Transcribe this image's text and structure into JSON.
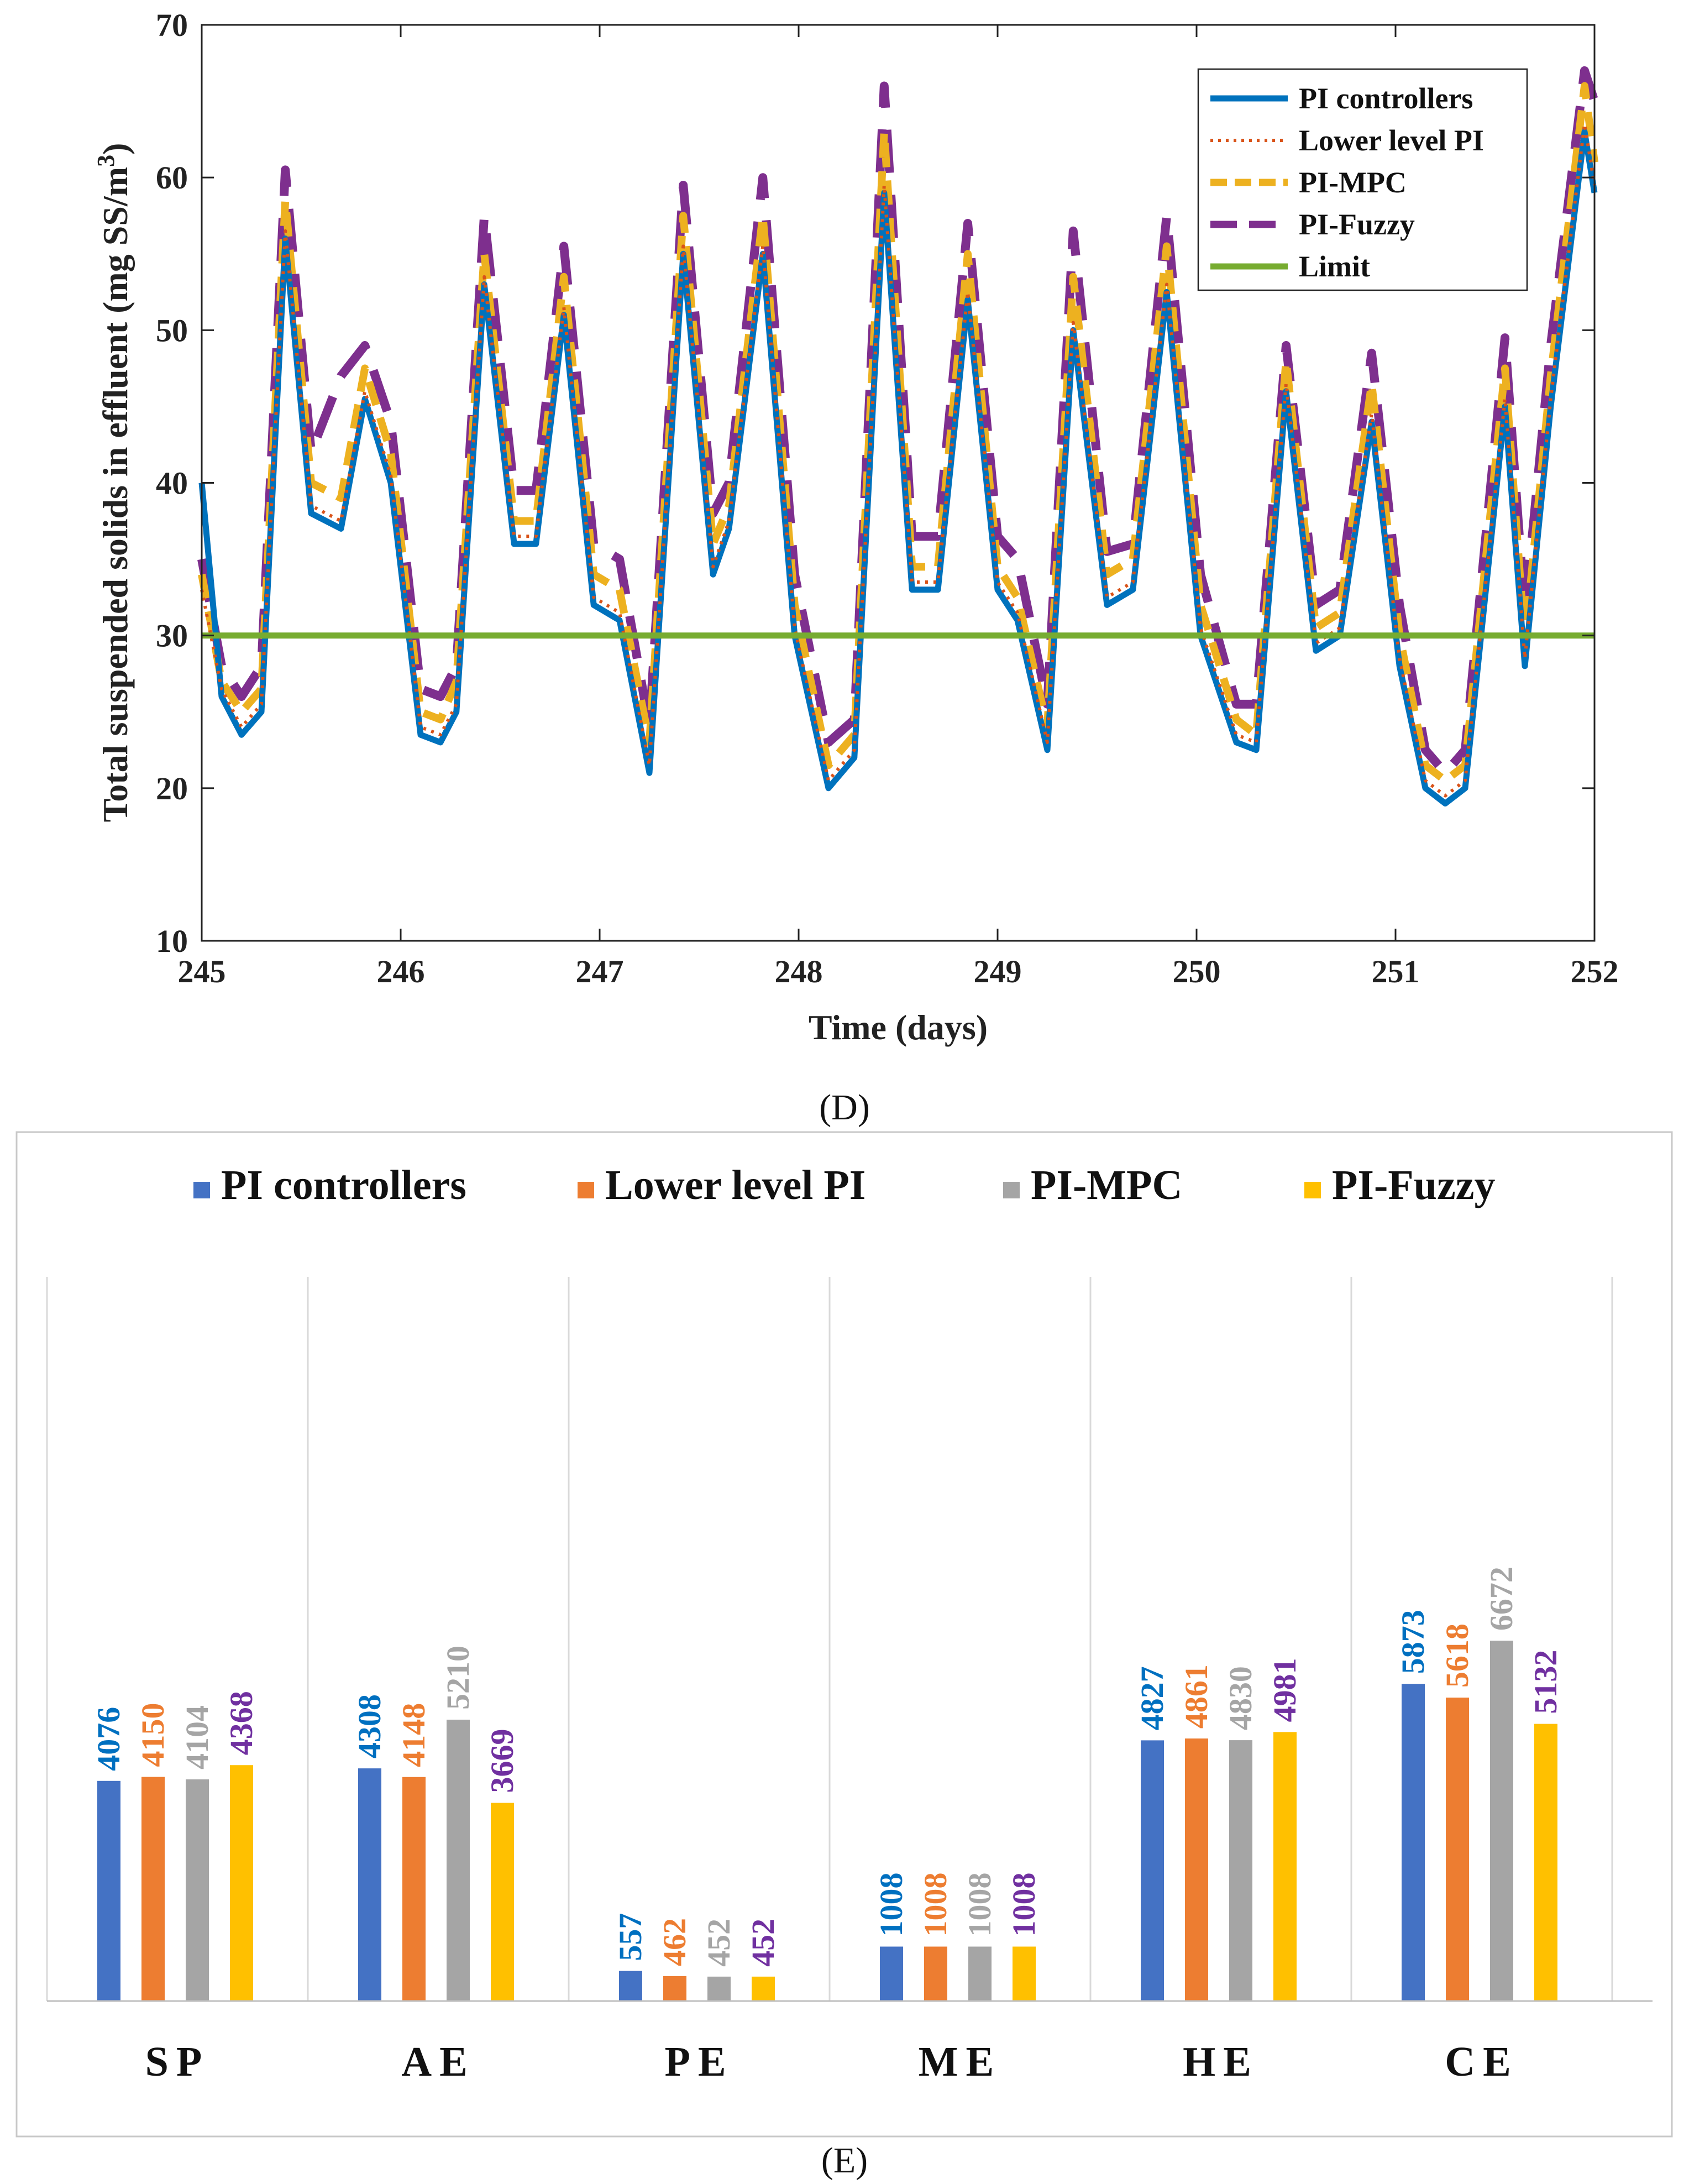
{
  "chart_data": [
    {
      "panel_label": "(D)",
      "type": "line",
      "title": "",
      "xlabel": "Time (days)",
      "ylabel": "Total suspended solids in effluent (mg SS/m³)",
      "ylabel_main": "Total suspended solids in effluent (mg SS/m",
      "ylabel_sup": "3",
      "ylabel_end": ")",
      "xlim": [
        245,
        252
      ],
      "ylim": [
        10,
        70
      ],
      "xticks": [
        245,
        246,
        247,
        248,
        249,
        250,
        251,
        252
      ],
      "yticks": [
        10,
        20,
        30,
        40,
        50,
        60,
        70
      ],
      "grid": false,
      "legend_position": "top-right",
      "limit": 30,
      "series": [
        {
          "name": "PI controllers",
          "color": "#0072BD",
          "style": "solid",
          "x": [
            245.0,
            245.1,
            245.2,
            245.3,
            245.42,
            245.55,
            245.7,
            245.82,
            245.95,
            246.1,
            246.2,
            246.28,
            246.42,
            246.57,
            246.68,
            246.82,
            246.97,
            247.1,
            247.25,
            247.42,
            247.57,
            247.65,
            247.82,
            247.98,
            248.15,
            248.28,
            248.43,
            248.57,
            248.7,
            248.85,
            249.0,
            249.1,
            249.25,
            249.38,
            249.55,
            249.68,
            249.85,
            250.02,
            250.2,
            250.3,
            250.45,
            250.6,
            250.72,
            250.88,
            251.02,
            251.15,
            251.25,
            251.35,
            251.55,
            251.65,
            251.78,
            251.95,
            252.0
          ],
          "y": [
            40,
            26,
            23.5,
            25,
            56,
            38,
            37,
            45.5,
            40,
            23.5,
            23,
            25,
            53,
            36,
            36,
            51,
            32,
            31,
            21,
            55,
            34,
            37,
            55,
            30,
            20,
            22,
            59,
            33,
            33,
            52,
            33,
            31,
            22.5,
            50,
            32,
            33,
            52.5,
            30,
            23,
            22.5,
            46,
            29,
            30,
            44,
            28,
            20,
            19,
            20,
            45,
            28,
            45,
            63,
            59
          ]
        },
        {
          "name": "Lower level PI",
          "color": "#D95319",
          "style": "dotted",
          "x": [
            245.0,
            245.1,
            245.2,
            245.3,
            245.42,
            245.55,
            245.7,
            245.82,
            245.95,
            246.1,
            246.2,
            246.28,
            246.42,
            246.57,
            246.68,
            246.82,
            246.97,
            247.1,
            247.25,
            247.42,
            247.57,
            247.65,
            247.82,
            247.98,
            248.15,
            248.28,
            248.43,
            248.57,
            248.7,
            248.85,
            249.0,
            249.1,
            249.25,
            249.38,
            249.55,
            249.68,
            249.85,
            250.02,
            250.2,
            250.3,
            250.45,
            250.6,
            250.72,
            250.88,
            251.02,
            251.15,
            251.25,
            251.35,
            251.55,
            251.65,
            251.78,
            251.95,
            252.0
          ],
          "y": [
            33,
            26.5,
            24,
            25.5,
            56.5,
            38.5,
            37.5,
            46,
            40.5,
            24,
            23.5,
            25.5,
            53.5,
            36.5,
            36.5,
            51.5,
            32.5,
            31.5,
            21.5,
            55.5,
            34.5,
            37.5,
            55.5,
            30.5,
            20.5,
            22.5,
            59.5,
            33.5,
            33.5,
            52.5,
            33.5,
            31.5,
            23,
            50.5,
            32.5,
            33.5,
            53,
            30.5,
            23.5,
            23,
            46.5,
            29.5,
            30.5,
            44.5,
            28.5,
            20.5,
            19.5,
            20.5,
            45.5,
            28.5,
            45.5,
            63.5,
            59.5
          ]
        },
        {
          "name": "PI-MPC",
          "color": "#EDB120",
          "style": "dashed",
          "x": [
            245.0,
            245.1,
            245.2,
            245.3,
            245.42,
            245.55,
            245.7,
            245.82,
            245.95,
            246.1,
            246.2,
            246.28,
            246.42,
            246.57,
            246.68,
            246.82,
            246.97,
            247.1,
            247.25,
            247.42,
            247.57,
            247.65,
            247.82,
            247.98,
            248.15,
            248.28,
            248.43,
            248.57,
            248.7,
            248.85,
            249.0,
            249.1,
            249.25,
            249.38,
            249.55,
            249.68,
            249.85,
            250.02,
            250.2,
            250.3,
            250.45,
            250.6,
            250.72,
            250.88,
            251.02,
            251.15,
            251.25,
            251.35,
            251.55,
            251.65,
            251.78,
            251.95,
            252.0
          ],
          "y": [
            34,
            27,
            25,
            26.5,
            58.5,
            40,
            39,
            47.5,
            42,
            25,
            24.5,
            27,
            55,
            37.5,
            37.5,
            53.5,
            34,
            33,
            23,
            57.5,
            36,
            38.5,
            57.5,
            32,
            21.5,
            23.5,
            63,
            34.5,
            34.5,
            55,
            34.5,
            32.5,
            24,
            53.5,
            34,
            35,
            55.5,
            32,
            24.5,
            23.5,
            48,
            30.5,
            31.5,
            46.5,
            30,
            21.5,
            20.5,
            21.5,
            47.5,
            29.5,
            47,
            66,
            61
          ]
        },
        {
          "name": "PI-Fuzzy",
          "color": "#7E2F8E",
          "style": "longdash",
          "x": [
            245.0,
            245.1,
            245.2,
            245.3,
            245.42,
            245.55,
            245.7,
            245.82,
            245.95,
            246.1,
            246.2,
            246.28,
            246.42,
            246.57,
            246.68,
            246.82,
            246.97,
            247.1,
            247.25,
            247.42,
            247.57,
            247.65,
            247.82,
            247.98,
            248.15,
            248.28,
            248.43,
            248.57,
            248.7,
            248.85,
            249.0,
            249.1,
            249.25,
            249.38,
            249.55,
            249.68,
            249.85,
            250.02,
            250.2,
            250.3,
            250.45,
            250.6,
            250.72,
            250.88,
            251.02,
            251.15,
            251.25,
            251.35,
            251.55,
            251.65,
            251.78,
            251.95,
            252.0
          ],
          "y": [
            35,
            28,
            26,
            28,
            60.5,
            42,
            47,
            49,
            44,
            26.5,
            26,
            28,
            57.5,
            39.5,
            39.5,
            55.5,
            36,
            35,
            24,
            59.5,
            38,
            40,
            60,
            34,
            23,
            24.5,
            66,
            36.5,
            36.5,
            57,
            36.5,
            35,
            25.5,
            56.5,
            35.5,
            36,
            57.5,
            34,
            25.5,
            25.5,
            49,
            32,
            33,
            48.5,
            32,
            22.5,
            21,
            22.5,
            49.5,
            31.5,
            49,
            67,
            65
          ]
        },
        {
          "name": "Limit",
          "color": "#77AC30",
          "style": "solid",
          "x": [
            245,
            252
          ],
          "y": [
            30,
            30
          ]
        }
      ]
    },
    {
      "panel_label": "(E)",
      "type": "bar",
      "title": "",
      "xlabel": "",
      "ylabel": "",
      "categories": [
        "SP",
        "AE",
        "PE",
        "ME",
        "HE",
        "CE"
      ],
      "ylim": [
        0,
        8000
      ],
      "grid": false,
      "legend_position": "top",
      "series": [
        {
          "name": "PI controllers",
          "color": "#4472C4",
          "label_color": "#0070C0",
          "values": [
            4076,
            4308,
            557,
            1008,
            4827,
            5873
          ]
        },
        {
          "name": "Lower level PI",
          "color": "#ED7D31",
          "label_color": "#ED7D31",
          "values": [
            4150,
            4148,
            462,
            1008,
            4861,
            5618
          ]
        },
        {
          "name": "PI-MPC",
          "color": "#A5A5A5",
          "label_color": "#A5A5A5",
          "values": [
            4104,
            5210,
            452,
            1008,
            4830,
            6672
          ]
        },
        {
          "name": "PI-Fuzzy",
          "color": "#FFC000",
          "label_color": "#7030A0",
          "values": [
            4368,
            3669,
            452,
            1008,
            4981,
            5132
          ]
        }
      ]
    }
  ]
}
